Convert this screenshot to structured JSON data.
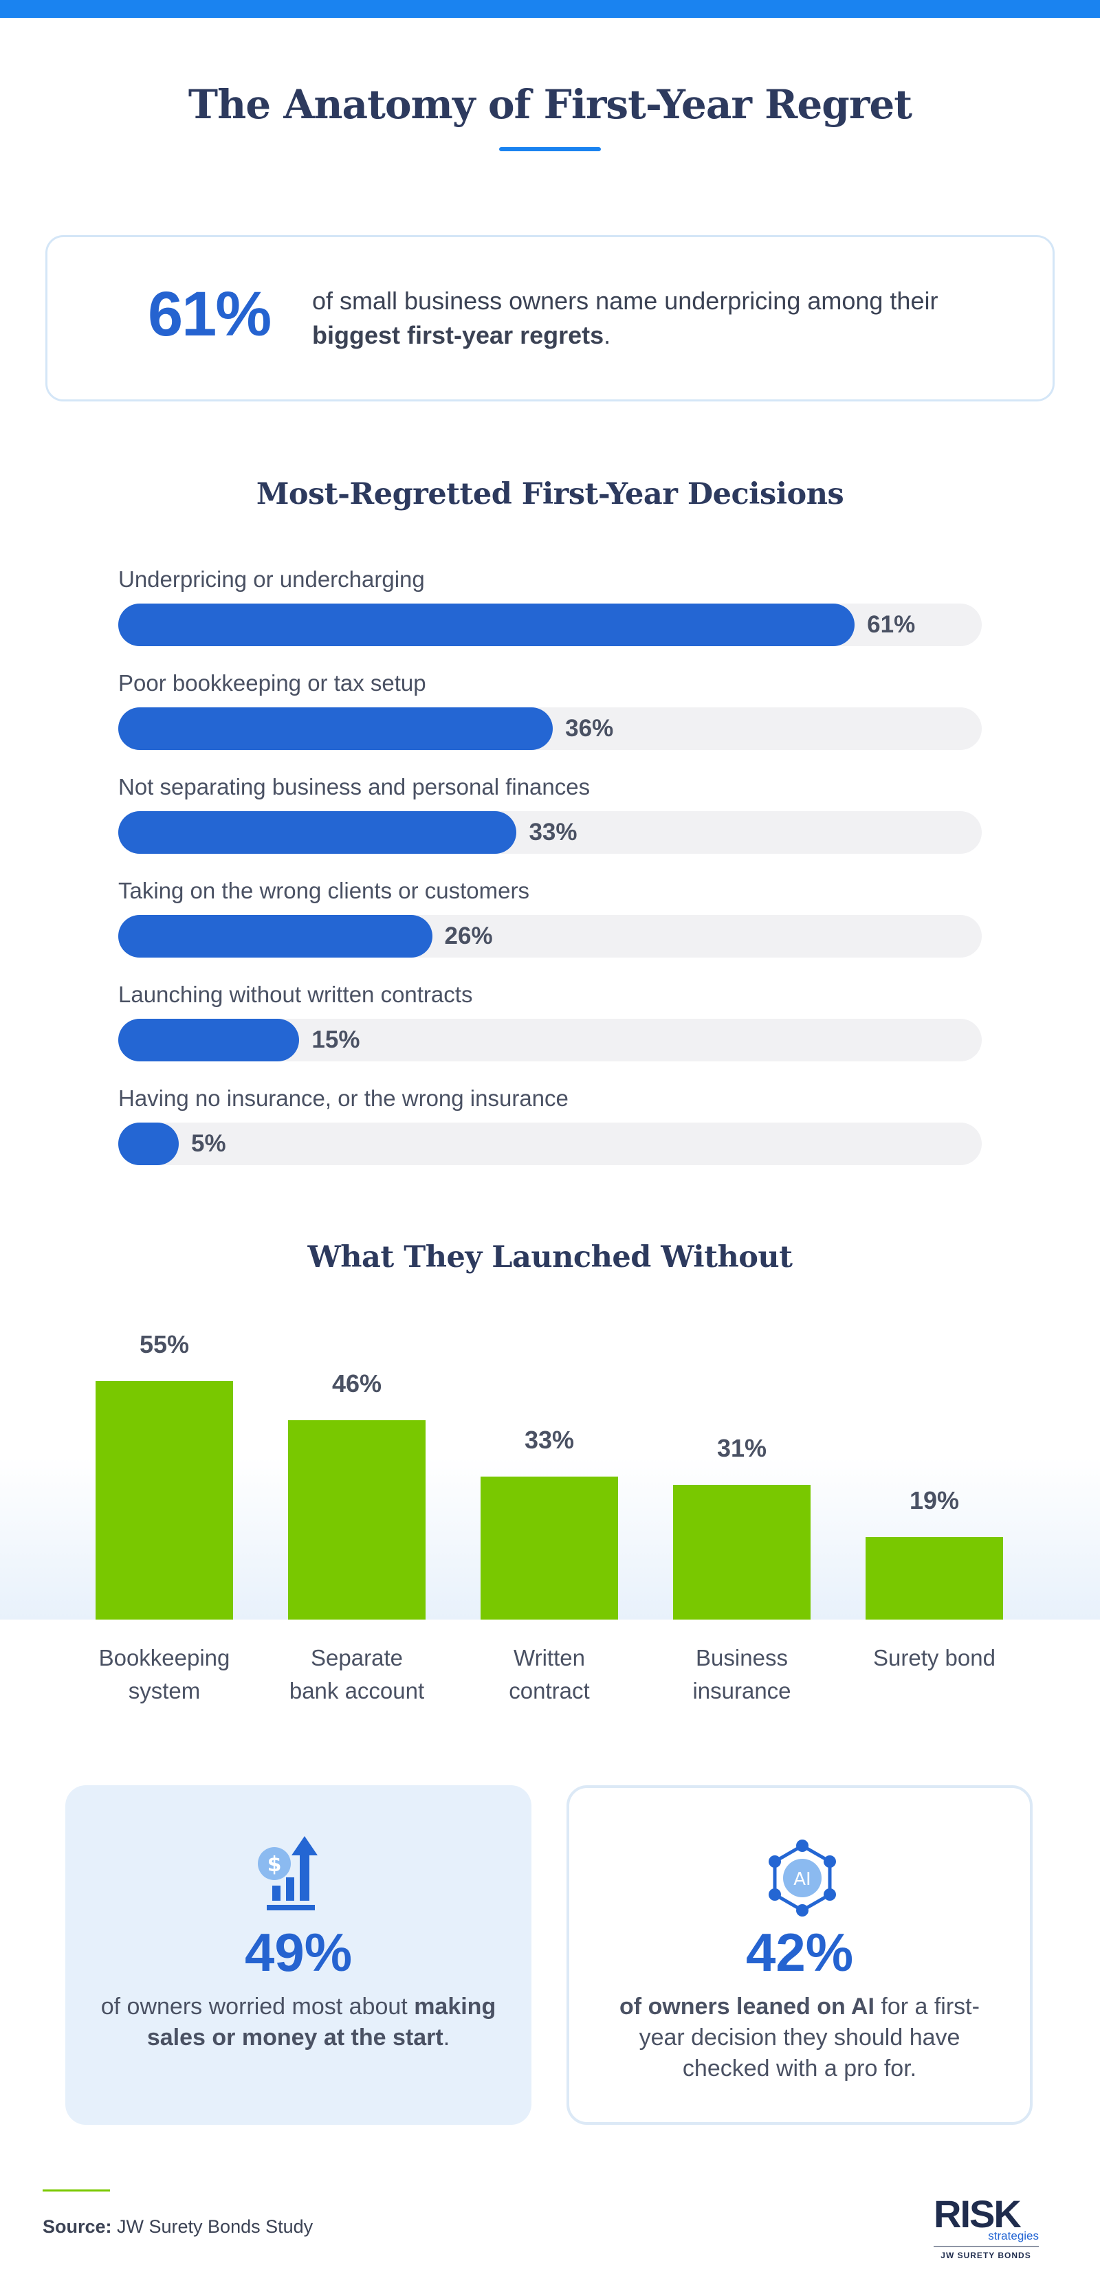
{
  "title": "The Anatomy of First-Year Regret",
  "highlight": {
    "value": "61%",
    "text_before": "of small business owners name underpricing among their ",
    "text_bold": "biggest first-year regrets",
    "text_after": "."
  },
  "colors": {
    "blue": "#2466d3",
    "accent_blue": "#1a83f0",
    "green": "#79c800",
    "track": "#f1f1f3"
  },
  "chart_data": [
    {
      "type": "bar",
      "orientation": "horizontal",
      "title": "Most-Regretted First-Year Decisions",
      "categories": [
        "Underpricing or undercharging",
        "Poor bookkeeping or tax setup",
        "Not separating business and personal finances",
        "Taking on the wrong clients or customers",
        "Launching without written contracts",
        "Having no insurance, or the wrong insurance"
      ],
      "values": [
        61,
        36,
        33,
        26,
        15,
        5
      ],
      "value_labels": [
        "61%",
        "36%",
        "33%",
        "26%",
        "15%",
        "5%"
      ],
      "xlim": [
        0,
        100
      ],
      "grid": false
    },
    {
      "type": "bar",
      "orientation": "vertical",
      "title": "What They Launched Without",
      "categories": [
        [
          "Bookkeeping",
          "system"
        ],
        [
          "Separate",
          "bank account"
        ],
        [
          "Written",
          "contract"
        ],
        [
          "Business",
          "insurance"
        ],
        [
          "Surety bond",
          ""
        ]
      ],
      "values": [
        55,
        46,
        33,
        31,
        19
      ],
      "value_labels": [
        "55%",
        "46%",
        "33%",
        "31%",
        "19%"
      ],
      "ylim": [
        0,
        55
      ],
      "grid": false
    }
  ],
  "cards": [
    {
      "icon": "dollar-growth-icon",
      "value": "49%",
      "text_before": "of owners worried most about ",
      "text_bold": "making sales or money at the start",
      "text_after": "."
    },
    {
      "icon": "ai-network-icon",
      "icon_text": "AI",
      "value": "42%",
      "text_bold": "of owners leaned on AI",
      "text_after": " for a first-year decision they should have checked with a pro for."
    }
  ],
  "source": {
    "label": "Source:",
    "text": " JW Surety Bonds Study"
  },
  "logo": {
    "line1": "RISK",
    "line2": "strategies",
    "line3": "JW SURETY BONDS"
  }
}
